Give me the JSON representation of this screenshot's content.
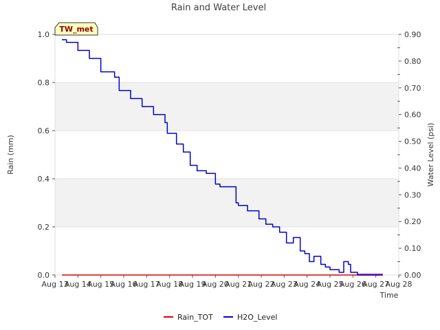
{
  "chart_data": {
    "type": "line",
    "title": "Rain and Water Level",
    "station_label": "TW_met",
    "xlabel": "Time",
    "ylabel_left": "Rain (mm)",
    "ylabel_right": "Water Level (psi)",
    "x_ticks": [
      "Aug 13",
      "Aug 14",
      "Aug 15",
      "Aug 16",
      "Aug 17",
      "Aug 18",
      "Aug 19",
      "Aug 20",
      "Aug 21",
      "Aug 22",
      "Aug 23",
      "Aug 24",
      "Aug 25",
      "Aug 26",
      "Aug 27",
      "Aug 28"
    ],
    "x_range_days": [
      13,
      28
    ],
    "y_left_range": [
      0.0,
      1.0
    ],
    "y_left_ticks": [
      "0.0",
      "0.2",
      "0.4",
      "0.6",
      "0.8",
      "1.0"
    ],
    "y_right_range": [
      0.0,
      0.9
    ],
    "y_right_ticks": [
      "0.00",
      "0.10",
      "0.20",
      "0.30",
      "0.40",
      "0.50",
      "0.60",
      "0.70",
      "0.80",
      "0.90"
    ],
    "colors": {
      "rain": "#dd0000",
      "h2o": "#0000cc",
      "h2o_tail": "#7a0099",
      "band": "#f2f2f2",
      "badge": "#ffffc0"
    },
    "series": [
      {
        "name": "Rain_TOT",
        "axis": "left",
        "x": [
          13.3,
          27.3
        ],
        "values": [
          0.0,
          0.0
        ]
      },
      {
        "name": "H2O_Level",
        "axis": "right",
        "x": [
          13.3,
          13.5,
          13.7,
          14.0,
          14.5,
          15.0,
          15.3,
          15.6,
          15.8,
          16.3,
          16.8,
          17.3,
          17.8,
          17.9,
          18.3,
          18.6,
          18.9,
          19.2,
          19.6,
          20.0,
          20.2,
          20.6,
          20.9,
          21.0,
          21.1,
          21.4,
          21.7,
          21.9,
          22.2,
          22.5,
          22.8,
          23.1,
          23.4,
          23.7,
          23.9,
          24.1,
          24.3,
          24.6,
          24.8,
          25.0,
          25.2,
          25.4,
          25.6,
          25.8,
          25.9,
          26.2,
          26.3,
          26.5,
          27.3
        ],
        "values": [
          0.88,
          0.87,
          0.87,
          0.84,
          0.81,
          0.76,
          0.76,
          0.74,
          0.69,
          0.66,
          0.63,
          0.6,
          0.57,
          0.53,
          0.49,
          0.46,
          0.41,
          0.39,
          0.38,
          0.34,
          0.33,
          0.33,
          0.27,
          0.26,
          0.26,
          0.24,
          0.24,
          0.21,
          0.19,
          0.18,
          0.16,
          0.12,
          0.14,
          0.09,
          0.08,
          0.05,
          0.07,
          0.04,
          0.03,
          0.02,
          0.02,
          0.01,
          0.05,
          0.04,
          0.01,
          0.0,
          0.0,
          0.0,
          0.0
        ]
      }
    ]
  }
}
